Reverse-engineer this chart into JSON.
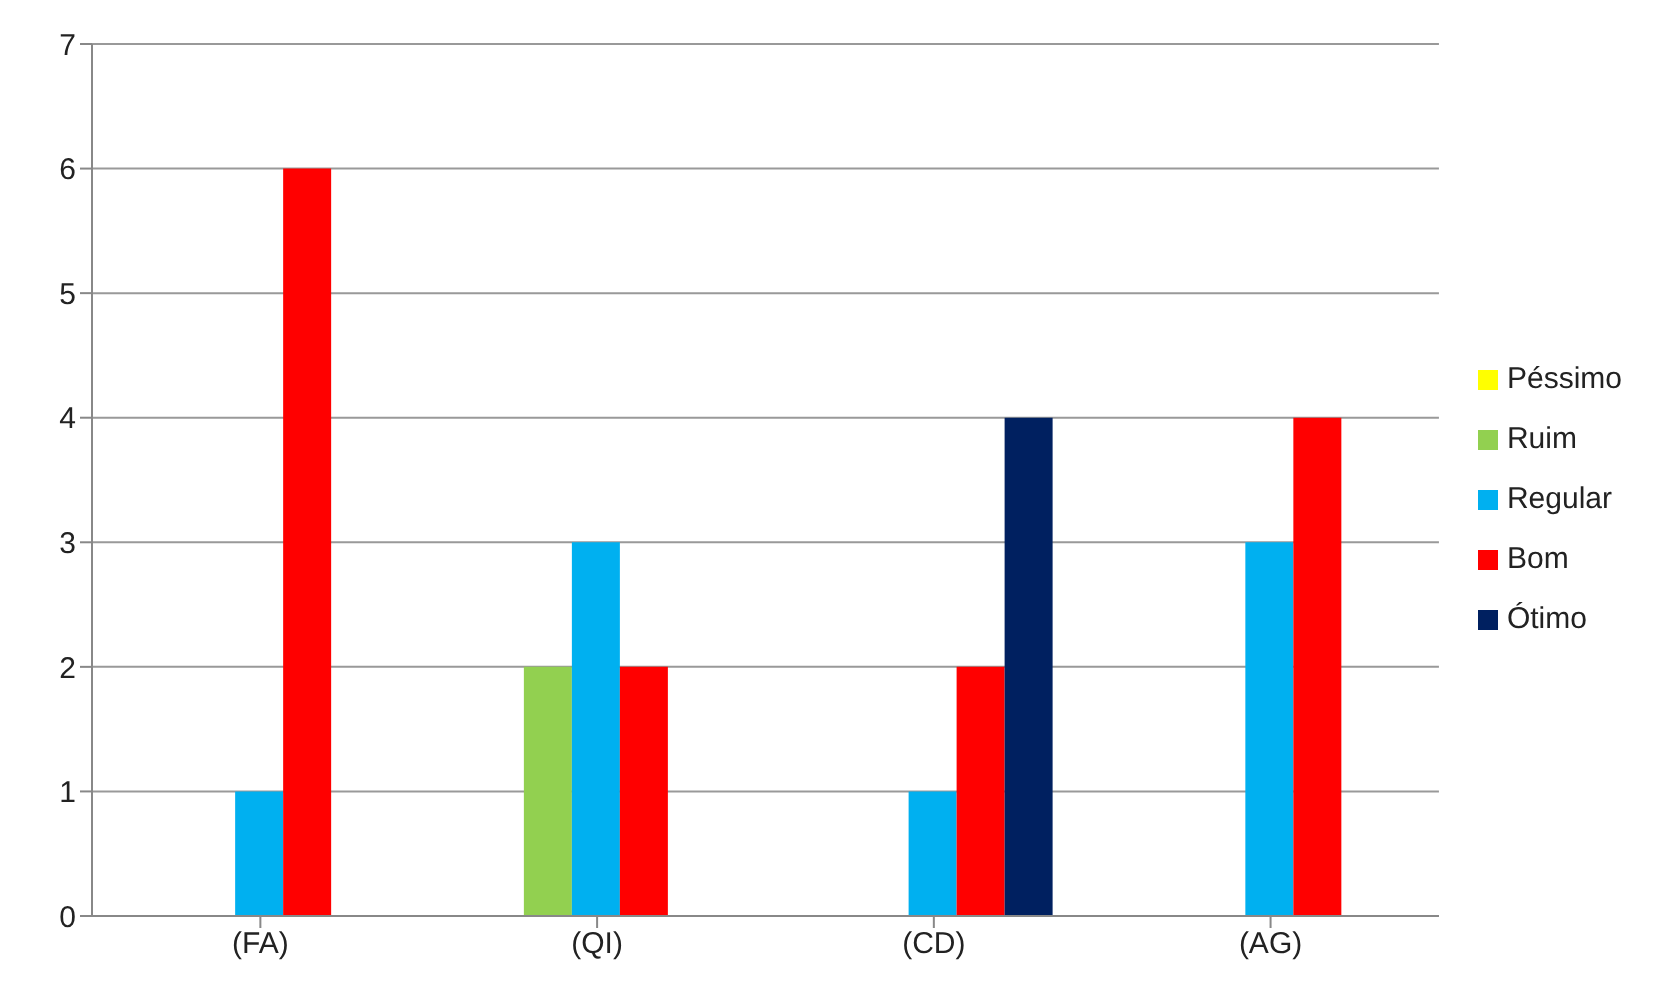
{
  "chart_data": {
    "type": "bar",
    "categories": [
      "(FA)",
      "(QI)",
      "(CD)",
      "(AG)"
    ],
    "series": [
      {
        "name": "Péssimo",
        "color": "#ffff00",
        "values": [
          0,
          0,
          0,
          0
        ]
      },
      {
        "name": "Ruim",
        "color": "#92d050",
        "values": [
          0,
          2,
          0,
          0
        ]
      },
      {
        "name": "Regular",
        "color": "#00b0f0",
        "values": [
          1,
          3,
          1,
          3
        ]
      },
      {
        "name": "Bom",
        "color": "#ff0000",
        "values": [
          6,
          2,
          2,
          4
        ]
      },
      {
        "name": "Ótimo",
        "color": "#002060",
        "values": [
          0,
          0,
          4,
          0
        ]
      }
    ],
    "ylim": [
      0,
      7
    ],
    "yticks": [
      0,
      1,
      2,
      3,
      4,
      5,
      6,
      7
    ],
    "grid": "y",
    "legend": "right"
  }
}
